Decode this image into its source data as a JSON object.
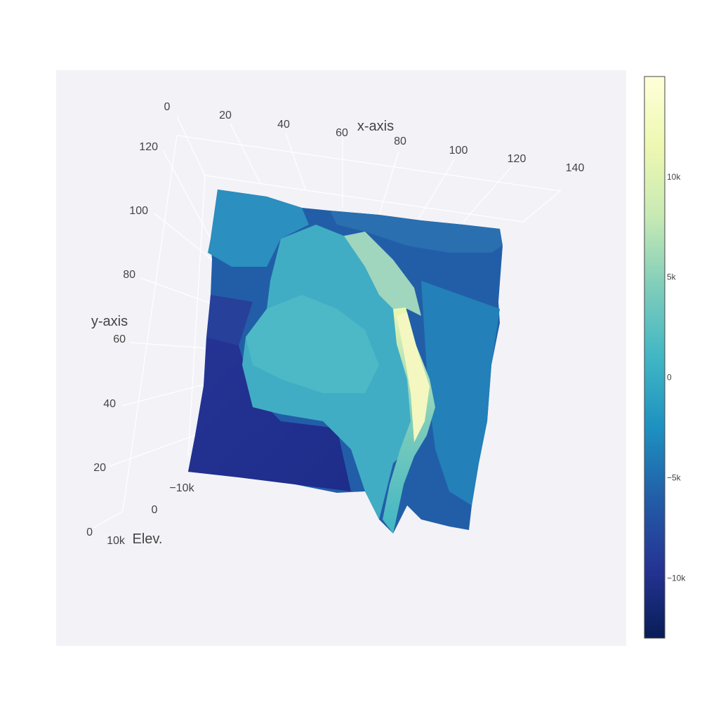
{
  "chart_data": {
    "type": "surface",
    "title": "",
    "colorscale": "YlGnBu",
    "colors": {
      "scene_bg": "#f3f2f7",
      "grid": "#ffffff",
      "text": "#444444",
      "colorscale_stops": [
        "#081d58",
        "#253494",
        "#225ea8",
        "#1d91c0",
        "#41b6c4",
        "#7fcdbb",
        "#c7e9b4",
        "#edf8b1",
        "#ffffd9"
      ]
    },
    "x_axis": {
      "title": "x-axis",
      "range": [
        0,
        140
      ],
      "tick_labels": [
        "0",
        "20",
        "40",
        "60",
        "80",
        "100",
        "120",
        "140"
      ]
    },
    "y_axis": {
      "title": "y-axis",
      "range": [
        0,
        120
      ],
      "tick_labels": [
        "0",
        "20",
        "40",
        "60",
        "80",
        "100",
        "120"
      ]
    },
    "z_axis": {
      "title": "Elev.",
      "tick_labels": [
        "10k",
        "0",
        "−10k"
      ]
    },
    "colorbar": {
      "range": [
        -13000,
        15000
      ],
      "ticks": [
        {
          "value": 10000,
          "label": "10k"
        },
        {
          "value": 5000,
          "label": "5k"
        },
        {
          "value": 0,
          "label": "0"
        },
        {
          "value": -5000,
          "label": "−5k"
        },
        {
          "value": -10000,
          "label": "−10k"
        }
      ]
    },
    "surface": {
      "description": "elevation over x 0–140, y 0–120: deep trough (≈ −12k) in lower-left, central plateau near 0–2k, high ridge peaking ≈ 13k along plateau's right edge, rugged terrain −6k to −2k elsewhere"
    }
  }
}
